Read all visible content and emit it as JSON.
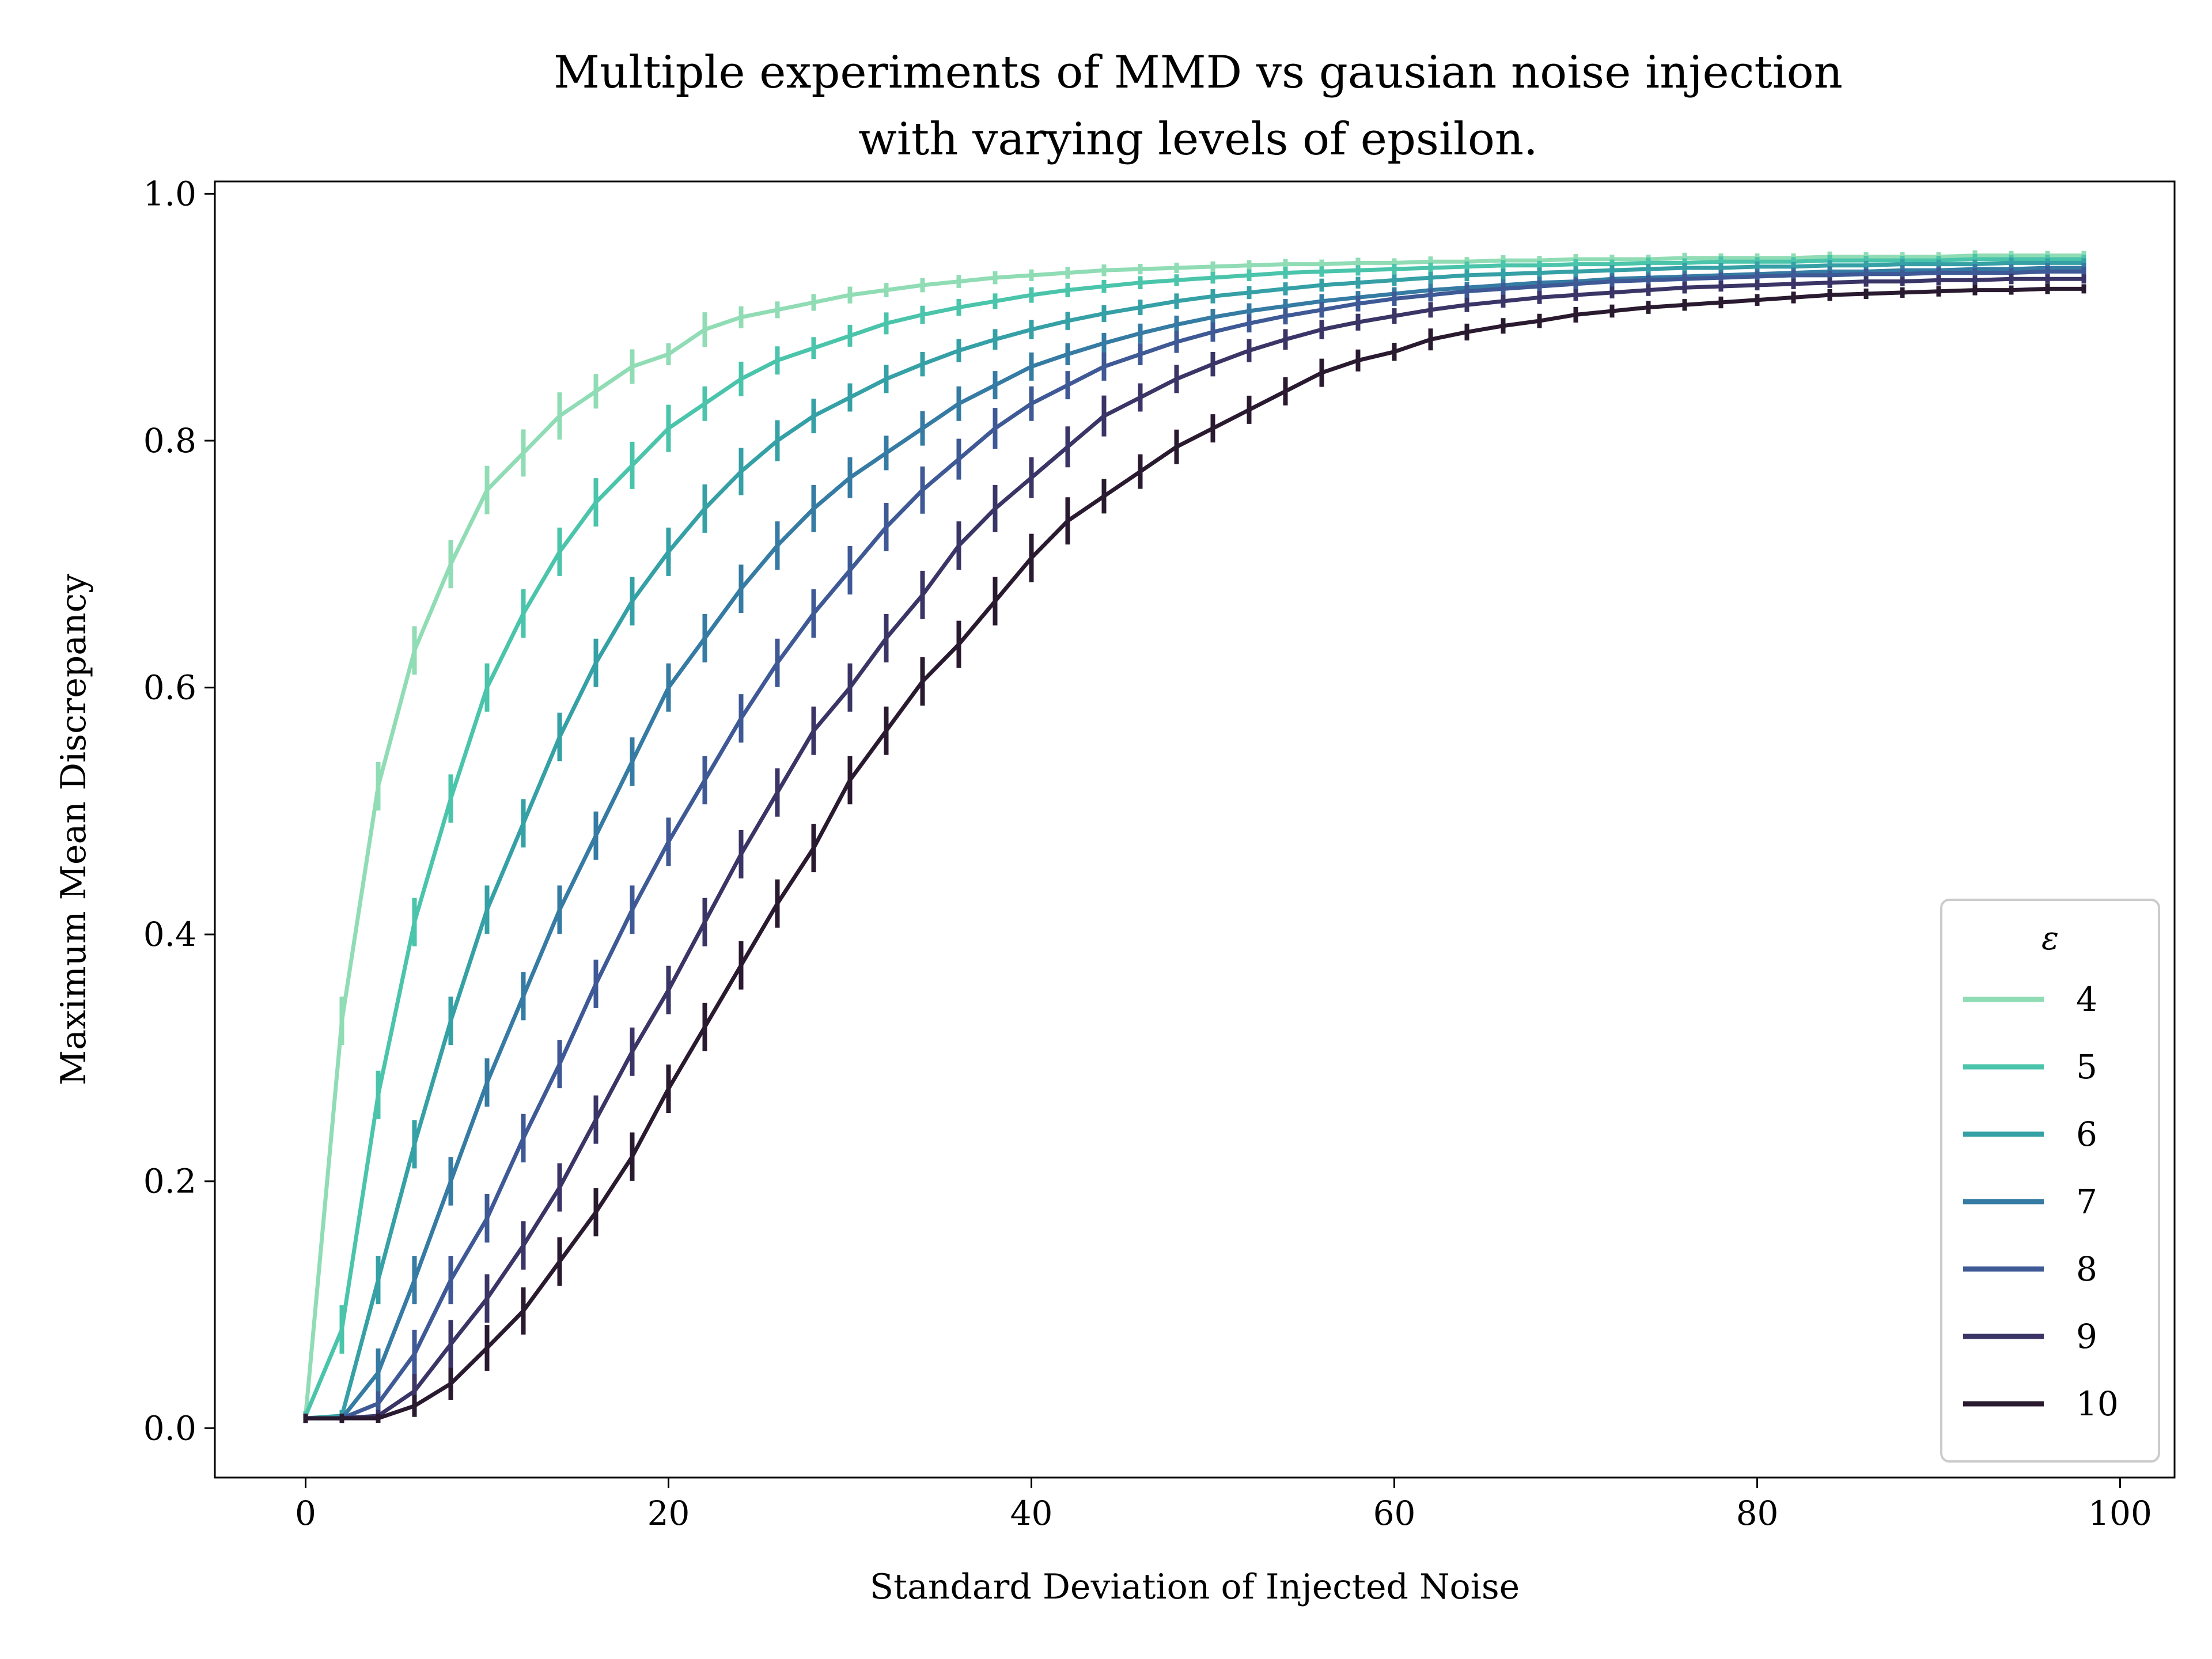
{
  "chart_data": {
    "type": "line",
    "title_lines": [
      "Multiple experiments of MMD vs gausian noise injection",
      "with varying levels of epsilon."
    ],
    "xlabel": "Standard Deviation of Injected Noise",
    "ylabel": "Maximum Mean Discrepancy",
    "xlim": [
      -5,
      103
    ],
    "ylim": [
      -0.04,
      1.01
    ],
    "xticks": [
      0,
      20,
      40,
      60,
      80,
      100
    ],
    "xtick_labels": [
      "0",
      "20",
      "40",
      "60",
      "80",
      "100"
    ],
    "yticks": [
      0.0,
      0.2,
      0.4,
      0.6,
      0.8,
      1.0
    ],
    "ytick_labels": [
      "0.0",
      "0.2",
      "0.4",
      "0.6",
      "0.8",
      "1.0"
    ],
    "grid": false,
    "legend": {
      "title": "ε",
      "placement": "lower-right"
    },
    "x_start": 0,
    "x_step": 2,
    "series": [
      {
        "name": "4",
        "color": "#90dcb5",
        "values": [
          0.01,
          0.33,
          0.52,
          0.63,
          0.7,
          0.76,
          0.79,
          0.82,
          0.84,
          0.86,
          0.87,
          0.89,
          0.9,
          0.906,
          0.912,
          0.918,
          0.922,
          0.926,
          0.929,
          0.932,
          0.934,
          0.936,
          0.938,
          0.939,
          0.94,
          0.941,
          0.942,
          0.943,
          0.943,
          0.944,
          0.944,
          0.945,
          0.945,
          0.946,
          0.946,
          0.947,
          0.947,
          0.947,
          0.948,
          0.948,
          0.948,
          0.948,
          0.949,
          0.949,
          0.949,
          0.949,
          0.95,
          0.95,
          0.95,
          0.95
        ]
      },
      {
        "name": "5",
        "color": "#4ac4aa",
        "values": [
          0.01,
          0.08,
          0.27,
          0.41,
          0.51,
          0.6,
          0.66,
          0.71,
          0.75,
          0.78,
          0.81,
          0.83,
          0.85,
          0.865,
          0.875,
          0.885,
          0.895,
          0.902,
          0.908,
          0.913,
          0.918,
          0.922,
          0.925,
          0.928,
          0.93,
          0.932,
          0.934,
          0.936,
          0.937,
          0.938,
          0.939,
          0.94,
          0.941,
          0.942,
          0.942,
          0.943,
          0.943,
          0.944,
          0.944,
          0.945,
          0.945,
          0.945,
          0.946,
          0.946,
          0.946,
          0.946,
          0.947,
          0.947,
          0.947,
          0.947
        ]
      },
      {
        "name": "6",
        "color": "#35a0a5",
        "values": [
          0.008,
          0.01,
          0.12,
          0.23,
          0.33,
          0.42,
          0.49,
          0.56,
          0.62,
          0.67,
          0.71,
          0.745,
          0.775,
          0.8,
          0.82,
          0.835,
          0.85,
          0.862,
          0.873,
          0.882,
          0.89,
          0.897,
          0.903,
          0.908,
          0.913,
          0.917,
          0.92,
          0.923,
          0.926,
          0.928,
          0.93,
          0.932,
          0.934,
          0.935,
          0.936,
          0.937,
          0.938,
          0.939,
          0.94,
          0.94,
          0.941,
          0.941,
          0.942,
          0.942,
          0.943,
          0.943,
          0.943,
          0.944,
          0.944,
          0.944
        ]
      },
      {
        "name": "7",
        "color": "#357ba3",
        "values": [
          0.008,
          0.008,
          0.045,
          0.12,
          0.2,
          0.28,
          0.35,
          0.42,
          0.48,
          0.54,
          0.6,
          0.64,
          0.68,
          0.715,
          0.745,
          0.77,
          0.79,
          0.81,
          0.83,
          0.845,
          0.86,
          0.87,
          0.879,
          0.887,
          0.894,
          0.9,
          0.905,
          0.909,
          0.913,
          0.916,
          0.919,
          0.922,
          0.924,
          0.926,
          0.928,
          0.929,
          0.931,
          0.932,
          0.933,
          0.934,
          0.935,
          0.936,
          0.937,
          0.937,
          0.938,
          0.938,
          0.939,
          0.939,
          0.94,
          0.94
        ]
      },
      {
        "name": "8",
        "color": "#3e5995",
        "values": [
          0.008,
          0.008,
          0.02,
          0.06,
          0.12,
          0.17,
          0.235,
          0.295,
          0.36,
          0.42,
          0.475,
          0.525,
          0.575,
          0.62,
          0.66,
          0.695,
          0.73,
          0.76,
          0.785,
          0.81,
          0.83,
          0.845,
          0.86,
          0.87,
          0.88,
          0.888,
          0.895,
          0.901,
          0.906,
          0.911,
          0.915,
          0.918,
          0.921,
          0.923,
          0.925,
          0.927,
          0.929,
          0.93,
          0.931,
          0.932,
          0.933,
          0.934,
          0.934,
          0.935,
          0.935,
          0.936,
          0.936,
          0.936,
          0.937,
          0.937
        ]
      },
      {
        "name": "9",
        "color": "#3a3566",
        "values": [
          0.008,
          0.008,
          0.01,
          0.03,
          0.068,
          0.105,
          0.148,
          0.195,
          0.25,
          0.305,
          0.355,
          0.41,
          0.465,
          0.515,
          0.565,
          0.6,
          0.64,
          0.675,
          0.715,
          0.745,
          0.77,
          0.795,
          0.82,
          0.835,
          0.85,
          0.862,
          0.873,
          0.882,
          0.89,
          0.896,
          0.901,
          0.906,
          0.91,
          0.913,
          0.916,
          0.918,
          0.92,
          0.922,
          0.924,
          0.925,
          0.926,
          0.927,
          0.928,
          0.929,
          0.929,
          0.93,
          0.93,
          0.931,
          0.931,
          0.931
        ]
      },
      {
        "name": "10",
        "color": "#2a1a30",
        "values": [
          0.008,
          0.008,
          0.008,
          0.018,
          0.036,
          0.065,
          0.095,
          0.135,
          0.175,
          0.22,
          0.275,
          0.325,
          0.375,
          0.425,
          0.47,
          0.525,
          0.565,
          0.605,
          0.635,
          0.67,
          0.705,
          0.735,
          0.755,
          0.775,
          0.795,
          0.81,
          0.825,
          0.84,
          0.855,
          0.865,
          0.872,
          0.882,
          0.888,
          0.893,
          0.897,
          0.902,
          0.905,
          0.908,
          0.91,
          0.912,
          0.914,
          0.916,
          0.918,
          0.919,
          0.92,
          0.921,
          0.922,
          0.922,
          0.923,
          0.923
        ]
      }
    ]
  }
}
